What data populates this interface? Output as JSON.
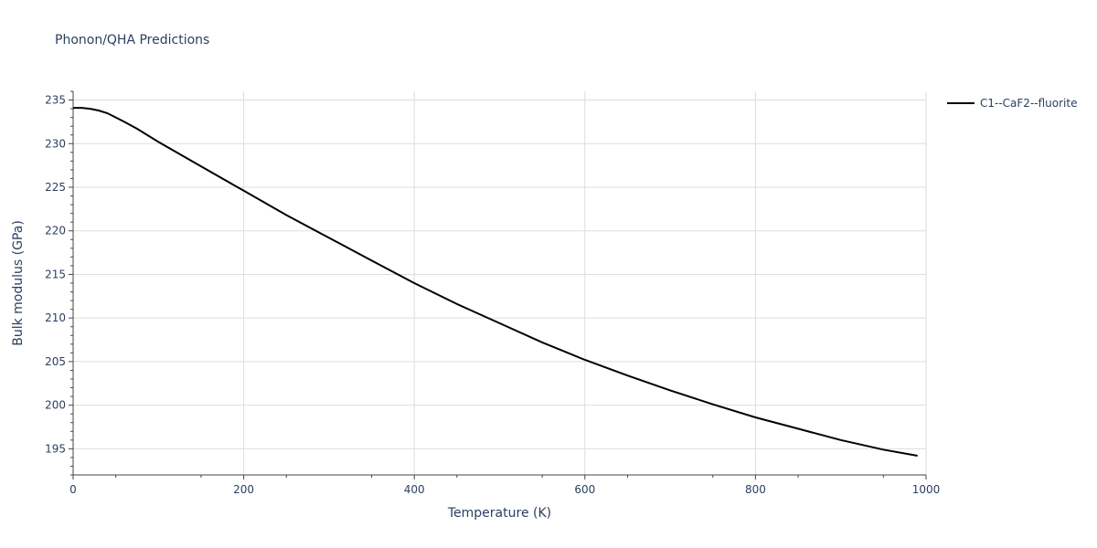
{
  "chart_data": {
    "type": "line",
    "title": "Phonon/QHA Predictions",
    "xlabel": "Temperature (K)",
    "ylabel": "Bulk modulus (GPa)",
    "xlim": [
      0,
      1000
    ],
    "ylim": [
      192,
      236
    ],
    "x_ticks": [
      0,
      200,
      400,
      600,
      800,
      1000
    ],
    "y_ticks": [
      195,
      200,
      205,
      210,
      215,
      220,
      225,
      230,
      235
    ],
    "grid": true,
    "legend_position": "top-right",
    "series": [
      {
        "name": "C1--CaF2--fluorite",
        "color": "#000000",
        "x": [
          0,
          10,
          20,
          30,
          40,
          50,
          60,
          75,
          100,
          150,
          200,
          250,
          300,
          350,
          400,
          450,
          500,
          550,
          600,
          650,
          700,
          750,
          800,
          850,
          900,
          950,
          990
        ],
        "y": [
          234.1,
          234.1,
          234.0,
          233.8,
          233.5,
          233.0,
          232.5,
          231.7,
          230.2,
          227.4,
          224.6,
          221.8,
          219.2,
          216.6,
          214.0,
          211.6,
          209.4,
          207.2,
          205.2,
          203.4,
          201.7,
          200.1,
          198.6,
          197.3,
          196.0,
          194.9,
          194.2
        ]
      }
    ]
  }
}
